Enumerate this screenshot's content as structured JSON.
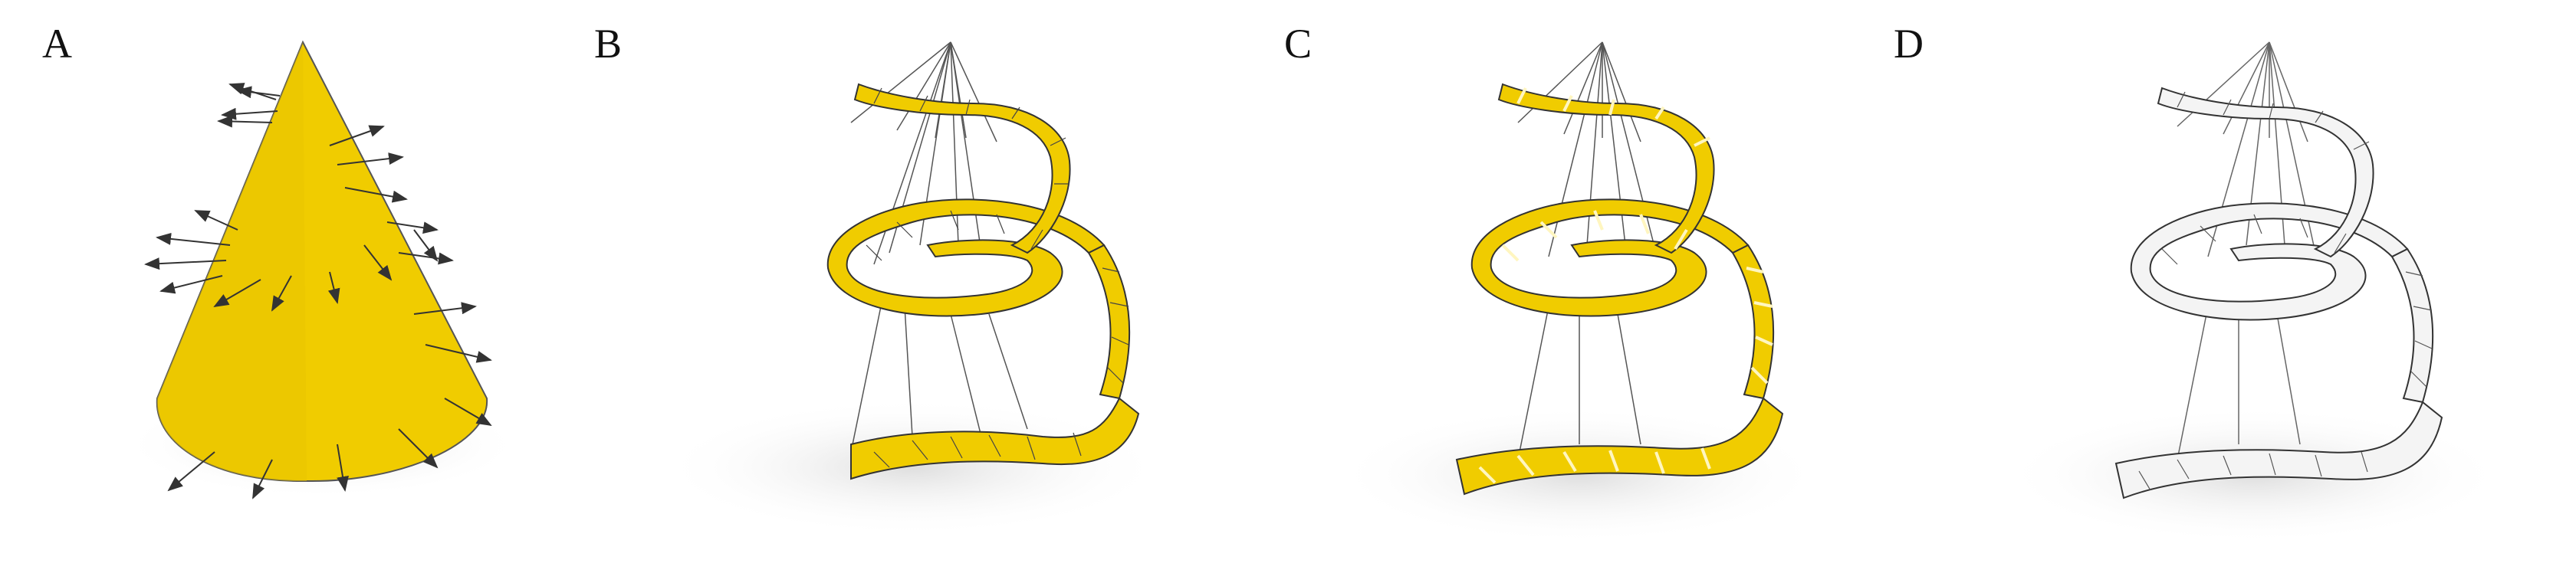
{
  "figure": {
    "panels": [
      {
        "label": "A",
        "content": "cone-with-surface-normals"
      },
      {
        "label": "B",
        "content": "helical-triangulated-strip-yellow"
      },
      {
        "label": "C",
        "content": "helical-strip-with-highlighted-edges"
      },
      {
        "label": "D",
        "content": "helical-strip-thickened-white"
      }
    ],
    "colors": {
      "yellow": "#f0cc00",
      "yellow_light": "#f7dc33",
      "edge": "#333333",
      "white_panel": "#f4f4f4",
      "shadow": "#d8d8d8"
    }
  }
}
